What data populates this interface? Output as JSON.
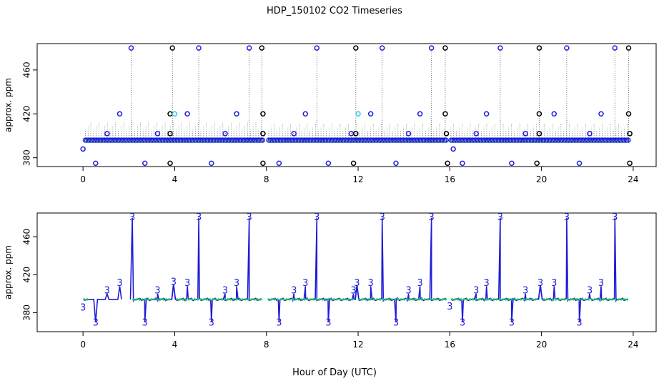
{
  "figure": {
    "title": "HDP_150102  CO2 Timeseries",
    "xlabel": "Hour of Day (UTC)"
  },
  "colors": {
    "points": "#1e1ed6",
    "green": "#22c55e",
    "cyan": "#33c6e8",
    "stems": "#333333",
    "axis": "#000000"
  },
  "chart_data": [
    {
      "type": "scatter",
      "ylabel": "approx. ppm",
      "xlim": [
        -2,
        25
      ],
      "ylim": [
        372,
        484
      ],
      "xticks": [
        "0",
        "4",
        "8",
        "12",
        "16",
        "20",
        "24"
      ],
      "yticks": [
        "380",
        "420",
        "460"
      ],
      "baseline_ppm": 396,
      "baseline_ppm_after_gap": 395,
      "baseline_segments": [
        [
          0.1,
          7.85
        ],
        [
          8.1,
          15.85
        ],
        [
          16.05,
          23.8
        ]
      ],
      "spikes_480": [
        2.1,
        3.9,
        5.05,
        7.25,
        7.8,
        10.2,
        11.9,
        13.05,
        15.2,
        15.8,
        18.2,
        19.9,
        21.1,
        23.2,
        23.8
      ],
      "levels_420": [
        1.6,
        3.8,
        4.55,
        6.7,
        7.85,
        9.7,
        12.55,
        14.7,
        15.8,
        17.6,
        19.9,
        20.55,
        22.6,
        23.8
      ],
      "levels_420_cyan": [
        4.0,
        12.0
      ],
      "levels_402": [
        1.05,
        3.25,
        3.8,
        6.2,
        7.85,
        9.2,
        11.7,
        11.9,
        14.2,
        15.85,
        17.15,
        19.3,
        19.9,
        22.1,
        23.85
      ],
      "dips_375": [
        0.55,
        2.7,
        3.8,
        5.6,
        7.85,
        8.55,
        10.7,
        11.8,
        13.65,
        15.9,
        16.55,
        18.7,
        19.8,
        21.65,
        23.85
      ],
      "other_points": [
        [
          0.0,
          388
        ],
        [
          16.15,
          388
        ]
      ]
    },
    {
      "type": "line",
      "ylabel": "approx. ppm",
      "xlim": [
        -2,
        25
      ],
      "ylim": [
        360,
        485
      ],
      "xticks": [
        "0",
        "4",
        "8",
        "12",
        "16",
        "20",
        "24"
      ],
      "yticks": [
        "380",
        "420",
        "460"
      ],
      "point_label": "3",
      "baseline_ppm": 394,
      "segments": [
        [
          0.05,
          0.2,
          2.1
        ],
        [
          2.2,
          3.8,
          4.05
        ],
        [
          4.1,
          7.85,
          8.05
        ],
        [
          8.1,
          11.85,
          12.0
        ],
        [
          12.05,
          15.85,
          16.05
        ],
        [
          16.1,
          19.85,
          20.05
        ],
        [
          20.1,
          23.8,
          24.0
        ]
      ],
      "peaks_480": [
        2.15,
        5.05,
        7.25,
        10.2,
        13.05,
        15.2,
        18.2,
        21.1,
        23.2
      ],
      "labels_408": [
        1.6,
        4.55,
        6.7,
        9.7,
        12.55,
        14.7,
        17.6,
        20.55,
        22.6
      ],
      "labels_400": [
        1.05,
        3.25,
        6.2,
        9.2,
        11.8,
        14.2,
        17.15,
        19.3,
        22.1
      ],
      "labels_bumps": [
        [
          3.95,
          410
        ],
        [
          11.95,
          409
        ],
        [
          19.95,
          409
        ]
      ],
      "labels_below_baseline": [
        [
          0.0,
          385
        ],
        [
          16.0,
          386
        ]
      ],
      "dips_370": [
        0.55,
        2.7,
        5.6,
        8.55,
        10.7,
        13.65,
        16.55,
        18.7,
        21.65
      ]
    }
  ]
}
